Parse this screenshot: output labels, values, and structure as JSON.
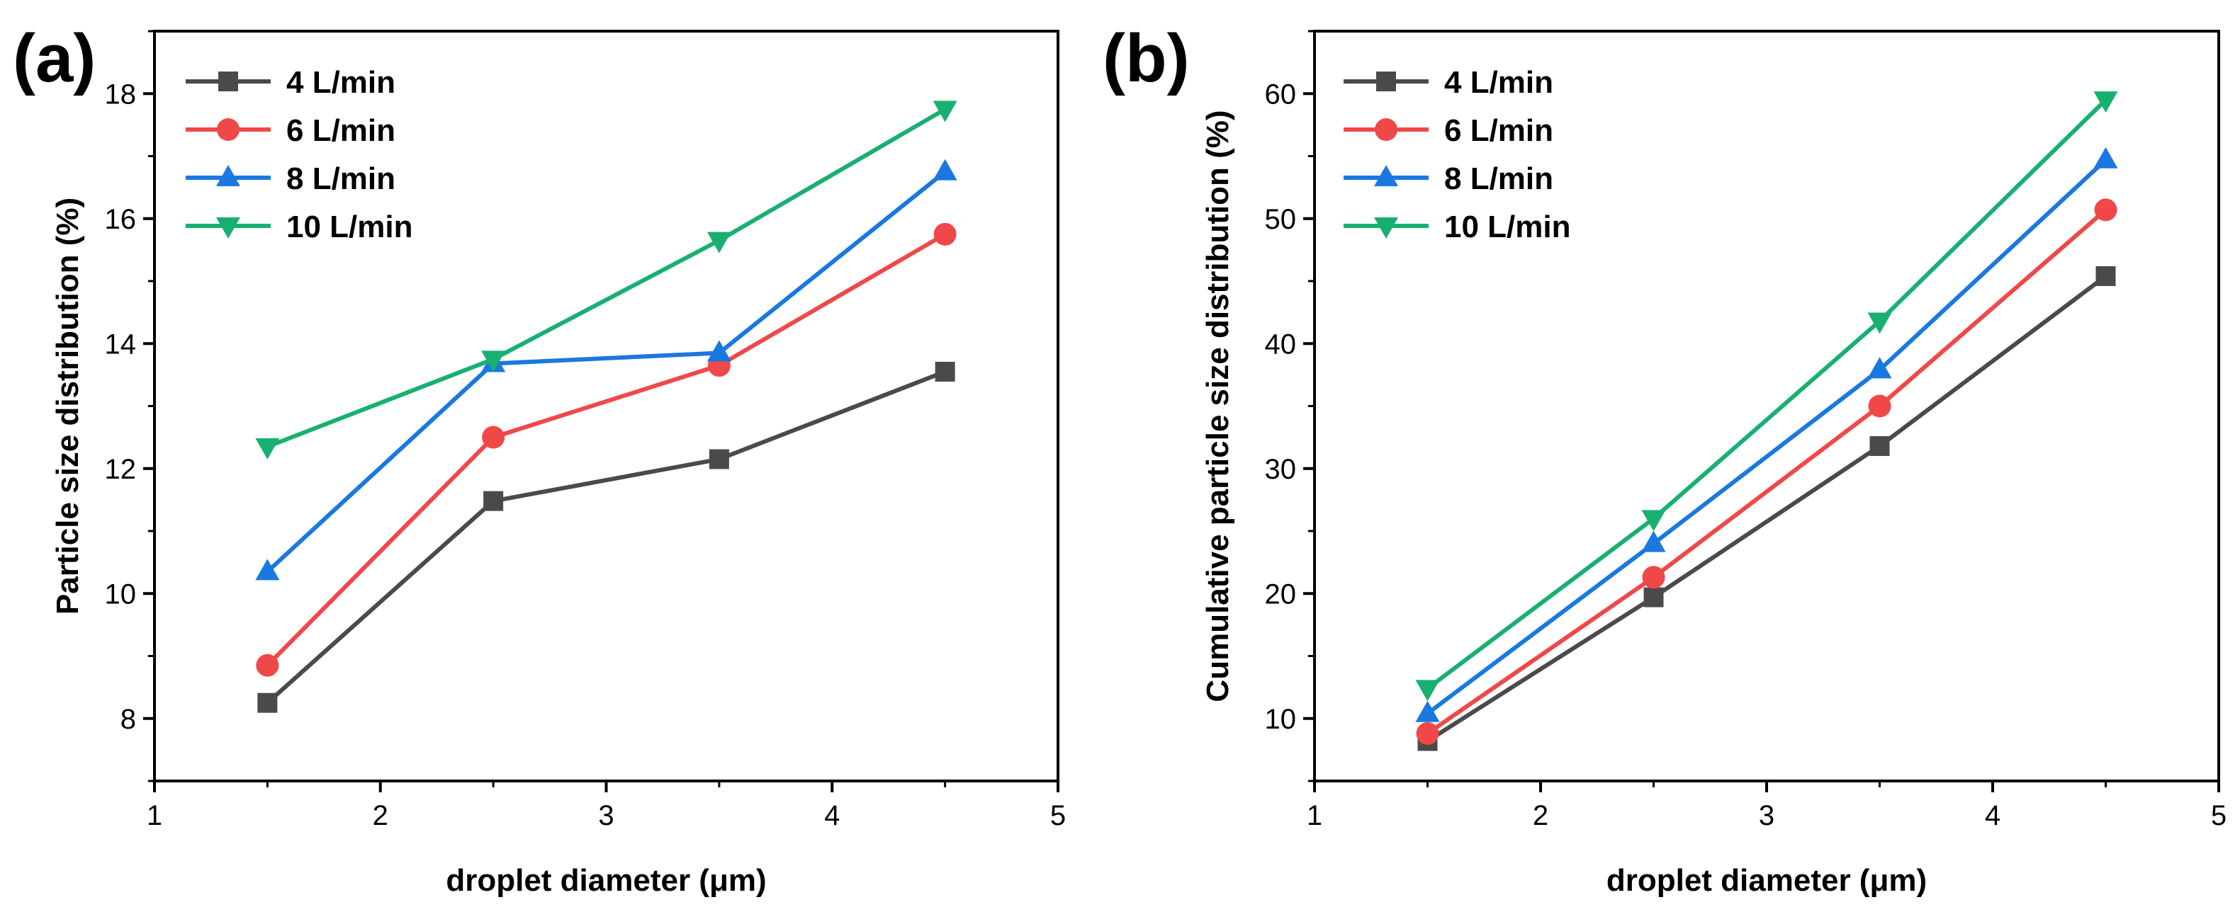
{
  "chart_data": [
    {
      "panel_label": "(a)",
      "type": "line",
      "title": "",
      "xlabel": "droplet diameter (μm)",
      "ylabel": "Particle size distribution (%)",
      "xlim": [
        1,
        5
      ],
      "ylim": [
        7,
        19
      ],
      "xticks": [
        1,
        2,
        3,
        4,
        5
      ],
      "yticks": [
        8,
        10,
        12,
        14,
        16,
        18
      ],
      "grid": false,
      "legend_position": "top-left",
      "x": [
        1.5,
        2.5,
        3.5,
        4.5
      ],
      "series": [
        {
          "name": "4 L/min",
          "color": "#4a4a4a",
          "marker": "square",
          "values": [
            8.25,
            11.48,
            12.15,
            13.55
          ]
        },
        {
          "name": "6 L/min",
          "color": "#f04848",
          "marker": "circle",
          "values": [
            8.85,
            12.5,
            13.65,
            15.75
          ]
        },
        {
          "name": "8 L/min",
          "color": "#1a78e0",
          "marker": "triangle-up",
          "values": [
            10.35,
            13.68,
            13.85,
            16.75
          ]
        },
        {
          "name": "10 L/min",
          "color": "#18b070",
          "marker": "triangle-down",
          "values": [
            12.35,
            13.75,
            15.65,
            17.75
          ]
        }
      ]
    },
    {
      "panel_label": "(b)",
      "type": "line",
      "title": "",
      "xlabel": "droplet diameter (μm)",
      "ylabel": "Cumulative particle size distribution (%)",
      "xlim": [
        1,
        5
      ],
      "ylim": [
        5,
        65
      ],
      "xticks": [
        1,
        2,
        3,
        4,
        5
      ],
      "yticks": [
        10,
        20,
        30,
        40,
        50,
        60
      ],
      "grid": false,
      "legend_position": "top-left",
      "x": [
        1.5,
        2.5,
        3.5,
        4.5
      ],
      "series": [
        {
          "name": "4 L/min",
          "color": "#4a4a4a",
          "marker": "square",
          "values": [
            8.2,
            19.7,
            31.8,
            45.4
          ]
        },
        {
          "name": "6 L/min",
          "color": "#f04848",
          "marker": "circle",
          "values": [
            8.8,
            21.3,
            35.0,
            50.7
          ]
        },
        {
          "name": "8 L/min",
          "color": "#1a78e0",
          "marker": "triangle-up",
          "values": [
            10.4,
            24.0,
            37.9,
            54.7
          ]
        },
        {
          "name": "10 L/min",
          "color": "#18b070",
          "marker": "triangle-down",
          "values": [
            12.4,
            26.0,
            41.8,
            59.5
          ]
        }
      ]
    }
  ]
}
